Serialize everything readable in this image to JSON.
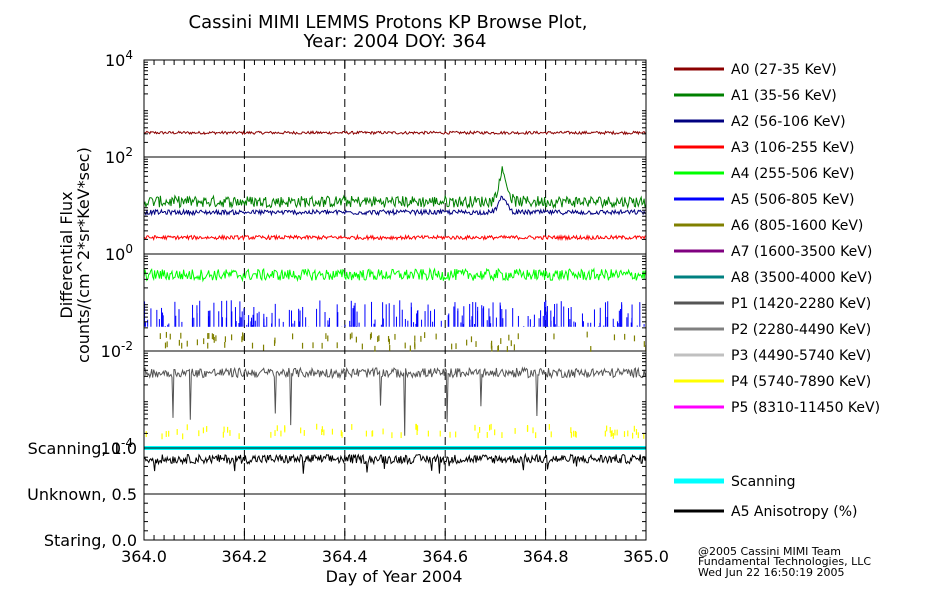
{
  "chart_data": {
    "type": "line",
    "title_line1": "Cassini MIMI LEMMS Protons KP Browse Plot,",
    "title_line2": "Year: 2004 DOY: 364",
    "xlabel": "Day of Year 2004",
    "ylabel_line1": "Differential Flux",
    "ylabel_line2": "counts/(cm^2*sr*KeV*sec)",
    "xlim": [
      364.0,
      365.0
    ],
    "ylim_log10": [
      -4,
      4
    ],
    "x_ticks": [
      "364.0",
      "364.2",
      "364.4",
      "364.6",
      "364.8",
      "365.0"
    ],
    "x_tick_values": [
      364.0,
      364.2,
      364.4,
      364.6,
      364.8,
      365.0
    ],
    "y_ticks": [
      {
        "base": "10",
        "exp": "4",
        "log": 4
      },
      {
        "base": "10",
        "exp": "2",
        "log": 2
      },
      {
        "base": "10",
        "exp": "0",
        "log": 0
      },
      {
        "base": "10",
        "exp": "-2",
        "log": -2
      },
      {
        "base": "10",
        "exp": "-4",
        "log": -4
      }
    ],
    "mode_ticks": [
      "Scanning, 1.0",
      "Unknown, 0.5",
      "Staring, 0.0"
    ],
    "mode_values": [
      1.0,
      0.5,
      0.0
    ],
    "series": [
      {
        "name": "A0 (27-35 KeV)",
        "color": "#8b0000",
        "log10_level": 2.5,
        "noise": 0.03,
        "kind": "continuous"
      },
      {
        "name": "A1 (35-56 KeV)",
        "color": "#008000",
        "log10_level": 1.08,
        "noise": 0.12,
        "kind": "continuous",
        "peak_x": 364.715,
        "peak_log10": 1.8
      },
      {
        "name": "A2 (56-106 KeV)",
        "color": "#000080",
        "log10_level": 0.86,
        "noise": 0.05,
        "kind": "continuous",
        "peak_x": 364.715,
        "peak_log10": 1.2
      },
      {
        "name": "A3 (106-255 KeV)",
        "color": "#ff0000",
        "log10_level": 0.34,
        "noise": 0.04,
        "kind": "continuous"
      },
      {
        "name": "A4 (255-506 KeV)",
        "color": "#00ff00",
        "log10_level": -0.43,
        "noise": 0.12,
        "kind": "continuous"
      },
      {
        "name": "A5 (506-805 KeV)",
        "color": "#0000ff",
        "log10_level": -1.25,
        "noise": 0.3,
        "kind": "spiky"
      },
      {
        "name": "A6 (805-1600 KeV)",
        "color": "#808000",
        "log10_level": -1.75,
        "noise": 0.15,
        "kind": "sparse"
      },
      {
        "name": "A7 (1600-3500 KeV)",
        "color": "#800080",
        "kind": "none"
      },
      {
        "name": "A8 (3500-4000 KeV)",
        "color": "#008080",
        "kind": "none"
      },
      {
        "name": "P1 (1420-2280 KeV)",
        "color": "#555555",
        "log10_level": -2.45,
        "noise": 0.1,
        "kind": "continuous"
      },
      {
        "name": "P2 (2280-4490 KeV)",
        "color": "#808080",
        "kind": "none"
      },
      {
        "name": "P3 (4490-5740 KeV)",
        "color": "#c0c0c0",
        "kind": "none"
      },
      {
        "name": "P4 (5740-7890 KeV)",
        "color": "#ffff00",
        "log10_level": -3.6,
        "noise": 0.1,
        "kind": "sparse"
      },
      {
        "name": "P5 (8310-11450 KeV)",
        "color": "#ff00ff",
        "kind": "none"
      }
    ],
    "mode_series": [
      {
        "name": "Scanning",
        "color": "#00ffff",
        "value": 1.0
      },
      {
        "name": "A5 Anisotropy (%)",
        "color": "#000000",
        "value": 0.88
      }
    ]
  },
  "footer": {
    "line1": "@2005 Cassini MIMI Team",
    "line2": "Fundamental Technologies, LLC",
    "line3": "Wed Jun 22 16:50:19 2005"
  }
}
